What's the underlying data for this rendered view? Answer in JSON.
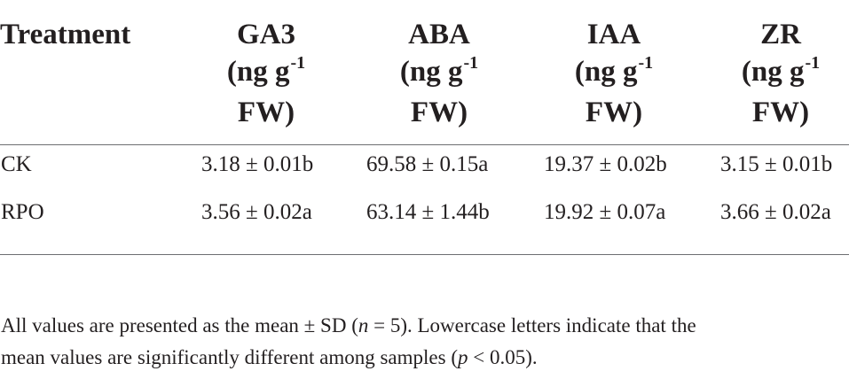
{
  "table": {
    "headers": [
      {
        "key": "treatment",
        "lines": [
          "Treatment"
        ]
      },
      {
        "key": "ga3",
        "name": "GA3",
        "unit_open": "(ng g",
        "unit_sup": "-1",
        "unit_close": "FW)"
      },
      {
        "key": "aba",
        "name": "ABA",
        "unit_open": "(ng g",
        "unit_sup": "-1",
        "unit_close": "FW)"
      },
      {
        "key": "iaa",
        "name": "IAA",
        "unit_open": "(ng g",
        "unit_sup": "-1",
        "unit_close": "FW)"
      },
      {
        "key": "zr",
        "name": "ZR",
        "unit_open": "(ng g",
        "unit_sup": "-1",
        "unit_close": "FW)"
      }
    ],
    "header_treatment": "Treatment",
    "rows": [
      {
        "label": "CK",
        "ga3": "3.18 ± 0.01b",
        "aba": "69.58 ± 0.15a",
        "iaa": "19.37 ± 0.02b",
        "zr": "3.15 ± 0.01b"
      },
      {
        "label": "RPO",
        "ga3": "3.56 ± 0.02a",
        "aba": "63.14 ± 1.44b",
        "iaa": "19.92 ± 0.07a",
        "zr": "3.66 ± 0.02a"
      }
    ]
  },
  "footnote": {
    "part1": "All values are presented as the mean ± SD (",
    "n_italic": "n",
    "part2": " = 5). Lowercase letters indicate that the",
    "line2_part1": "mean values are significantly different among samples (",
    "p_italic": "p",
    "line2_part2": " < 0.05)."
  }
}
